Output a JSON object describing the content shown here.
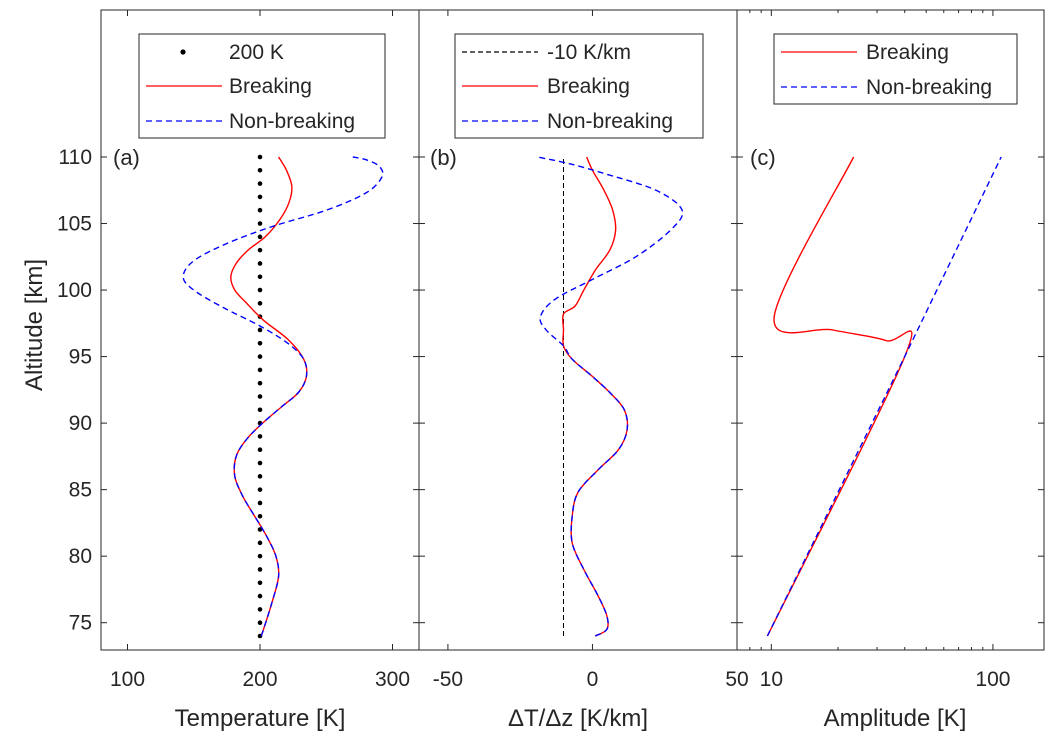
{
  "ylabel": "Altitude [km]",
  "colors": {
    "breaking": "#ff0000",
    "nonbreaking": "#0000ff",
    "ref": "#000000",
    "axes": "#262626"
  },
  "chart_data": [
    {
      "type": "line",
      "panel_label": "(a)",
      "xlabel": "Temperature [K]",
      "xlim": [
        80,
        320
      ],
      "ylim": [
        74,
        110
      ],
      "xticks": [
        100,
        200,
        300
      ],
      "xtick_labels": [
        "100",
        "200",
        "300"
      ],
      "yticks": [
        75,
        80,
        85,
        90,
        95,
        100,
        105,
        110
      ],
      "ytick_labels": [
        "75",
        "80",
        "85",
        "90",
        "95",
        "100",
        "105",
        "110"
      ],
      "legend": [
        "200 K",
        "Breaking",
        "Non-breaking"
      ],
      "legend_position": "top",
      "series": [
        {
          "name": "200 K",
          "style": "dotted",
          "x": [
            200,
            200,
            200,
            200,
            200,
            200,
            200,
            200,
            200,
            200,
            200,
            200,
            200,
            200,
            200,
            200,
            200,
            200,
            200,
            200,
            200,
            200,
            200,
            200,
            200,
            200,
            200,
            200,
            200,
            200,
            200,
            200,
            200,
            200,
            200,
            200,
            200,
            200,
            200
          ],
          "y": [
            74,
            75,
            76,
            77,
            78,
            79,
            80,
            81,
            82,
            83,
            84,
            85,
            86,
            87,
            88,
            89,
            90,
            91,
            92,
            93,
            94,
            95,
            96,
            97,
            98,
            99,
            100,
            101,
            102,
            103,
            104,
            105,
            106,
            107,
            108,
            109,
            110,
            110,
            110
          ]
        },
        {
          "name": "Breaking",
          "style": "solid",
          "x": [
            201,
            209,
            214,
            212,
            205,
            196,
            187,
            181,
            182,
            190,
            202,
            216,
            229,
            235,
            233,
            221,
            203,
            190,
            181,
            178,
            182,
            191,
            204,
            215,
            222,
            224,
            220,
            214
          ],
          "y": [
            74,
            76.5,
            78.5,
            80,
            81.5,
            83,
            84.5,
            86,
            87.5,
            88.8,
            90,
            91.2,
            92.3,
            93.5,
            94.8,
            96.3,
            97.7,
            99,
            100,
            101,
            102,
            103,
            104,
            105.3,
            106.6,
            107.8,
            109,
            110
          ]
        },
        {
          "name": "Non-breaking",
          "style": "dashed",
          "x": [
            201,
            209,
            214,
            212,
            205,
            196,
            187,
            181,
            182,
            190,
            202,
            216,
            229,
            235,
            233,
            221,
            200,
            172,
            150,
            142,
            150,
            175,
            210,
            250,
            280,
            292,
            290,
            280,
            270
          ],
          "y": [
            74,
            76.5,
            78.5,
            80,
            81.5,
            83,
            84.5,
            86,
            87.5,
            88.8,
            90,
            91.2,
            92.3,
            93.5,
            94.8,
            96,
            97.3,
            98.7,
            100,
            101,
            102.2,
            103.5,
            104.8,
            106,
            107.3,
            108.5,
            109.3,
            109.8,
            110
          ]
        }
      ]
    },
    {
      "type": "line",
      "panel_label": "(b)",
      "xlabel": "ΔT/Δz [K/km]",
      "xlim": [
        -60,
        50
      ],
      "ylim": [
        74,
        110
      ],
      "xticks": [
        -50,
        0,
        50
      ],
      "xtick_labels": [
        "-50",
        "0",
        "50"
      ],
      "yticks": [
        75,
        80,
        85,
        90,
        95,
        100,
        105,
        110
      ],
      "legend": [
        "-10 K/km",
        "Breaking",
        "Non-breaking"
      ],
      "legend_position": "top",
      "series": [
        {
          "name": "-10 K/km",
          "style": "dashed",
          "x": [
            -10,
            -10
          ],
          "y": [
            74,
            110
          ]
        },
        {
          "name": "Breaking",
          "style": "solid",
          "x": [
            1,
            5,
            5,
            2,
            -3,
            -7,
            -7,
            -5,
            2,
            9,
            12,
            11,
            6,
            0,
            -7,
            -10,
            -10,
            -10,
            -6,
            -3,
            1,
            6,
            8,
            7,
            4,
            0,
            -2
          ],
          "y": [
            74,
            74.5,
            75.5,
            77,
            79,
            81,
            83,
            84.8,
            86.5,
            88,
            89.5,
            91,
            92.3,
            93.5,
            94.8,
            95.8,
            97,
            98.2,
            98.8,
            100,
            101.5,
            103,
            104.5,
            106,
            107.5,
            109,
            110
          ]
        },
        {
          "name": "Non-breaking",
          "style": "dashed",
          "x": [
            1,
            5,
            5,
            2,
            -3,
            -7,
            -7,
            -5,
            2,
            9,
            12,
            11,
            6,
            0,
            -7,
            -10,
            -16,
            -18,
            -13,
            0,
            15,
            27,
            31,
            22,
            5,
            -8,
            -19
          ],
          "y": [
            74,
            74.5,
            75.5,
            77,
            79,
            81,
            83,
            84.8,
            86.5,
            88,
            89.5,
            91,
            92.3,
            93.5,
            94.8,
            95.8,
            97,
            98,
            99.3,
            100.8,
            102.5,
            104.5,
            106,
            107.5,
            108.7,
            109.5,
            110
          ]
        }
      ]
    },
    {
      "type": "line",
      "panel_label": "(c)",
      "xlabel": "Amplitude [K]",
      "xscale": "log",
      "xlim": [
        7,
        170
      ],
      "ylim": [
        74,
        110
      ],
      "xticks": [
        10,
        100
      ],
      "xtick_labels": [
        "10",
        "100"
      ],
      "xminor": [
        7,
        8,
        9,
        20,
        30,
        40,
        50,
        60,
        70,
        80,
        90
      ],
      "yticks": [
        75,
        80,
        85,
        90,
        95,
        100,
        105,
        110
      ],
      "legend": [
        "Breaking",
        "Non-breaking"
      ],
      "legend_position": "top",
      "series": [
        {
          "name": "Breaking",
          "style": "solid",
          "x": [
            9.6,
            40,
            33,
            19,
            10.3,
            23.5
          ],
          "y": [
            74,
            95,
            96.2,
            97,
            98,
            110
          ]
        },
        {
          "name": "Non-breaking",
          "style": "dashed",
          "x": [
            9.6,
            40,
            109
          ],
          "y": [
            74,
            95,
            110
          ]
        }
      ]
    }
  ]
}
